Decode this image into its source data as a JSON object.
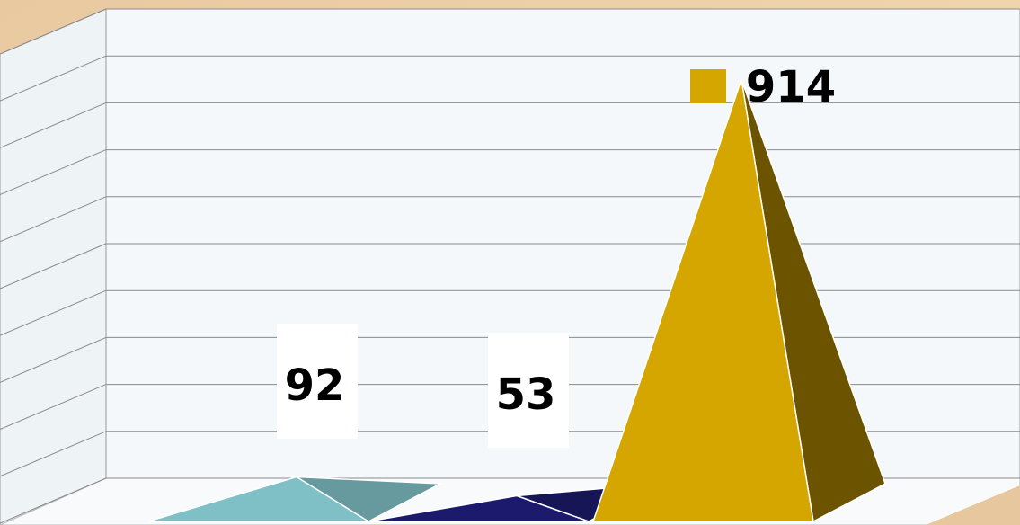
{
  "chart_data": {
    "type": "pyramid",
    "categories": [
      null,
      null,
      null
    ],
    "values": [
      92,
      53,
      914
    ],
    "colors": [
      "#7fc0c6",
      "#1c1a6c",
      "#d6a600"
    ],
    "ylim": [
      0,
      1000
    ],
    "yticks": [
      0,
      100,
      200,
      300,
      400,
      500,
      600,
      700,
      800,
      900,
      1000
    ],
    "grid": true
  }
}
